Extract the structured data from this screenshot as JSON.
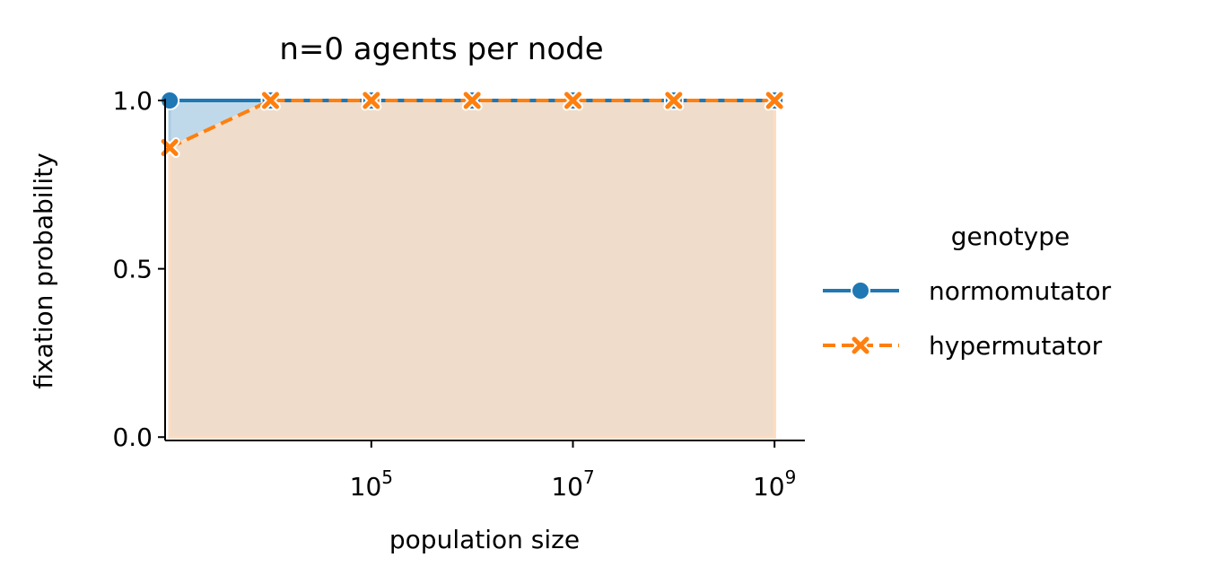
{
  "chart_data": {
    "type": "line",
    "title": "n=0 agents per node",
    "xlabel": "population size",
    "ylabel": "fixation probability",
    "x_scale": "log",
    "xlim": [
      900,
      2000000000
    ],
    "ylim": [
      -0.01,
      1.0
    ],
    "x_ticks": [
      {
        "value": 100000,
        "base": "10",
        "exp": "5"
      },
      {
        "value": 10000000,
        "base": "10",
        "exp": "7"
      },
      {
        "value": 1000000000,
        "base": "10",
        "exp": "9"
      }
    ],
    "y_ticks": [
      {
        "value": 0.0,
        "label": "0.0"
      },
      {
        "value": 0.5,
        "label": "0.5"
      },
      {
        "value": 1.0,
        "label": "1.0"
      }
    ],
    "grid": false,
    "legend_title": "genotype",
    "legend_position": "right",
    "series": [
      {
        "name": "normomutator",
        "color": "#1f77b4",
        "marker": "circle",
        "linestyle": "solid",
        "fill_color": "#a9cce3",
        "x": [
          1000,
          10000,
          100000,
          1000000,
          10000000,
          100000000,
          1000000000
        ],
        "y": [
          1.0,
          1.0,
          1.0,
          1.0,
          1.0,
          1.0,
          1.0
        ]
      },
      {
        "name": "hypermutator",
        "color": "#ff7f0e",
        "marker": "x",
        "linestyle": "dashed",
        "fill_color": "#ffdcbf",
        "x": [
          1000,
          10000,
          100000,
          1000000,
          10000000,
          100000000,
          1000000000
        ],
        "y": [
          0.86,
          1.0,
          1.0,
          1.0,
          1.0,
          1.0,
          1.0
        ]
      }
    ]
  }
}
